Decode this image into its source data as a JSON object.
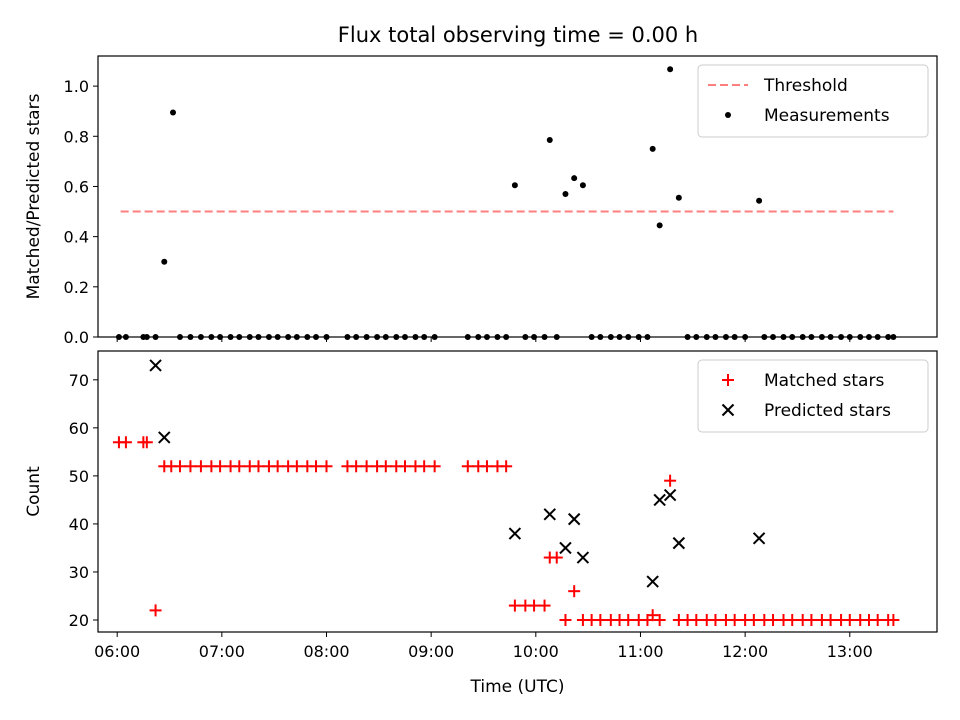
{
  "figure": {
    "title": "Flux total observing time = 0.00 h"
  },
  "chart_data": [
    {
      "type": "scatter",
      "xlabel": "",
      "ylabel": "Matched/Predicted stars",
      "x_ticks": [
        "06:00",
        "07:00",
        "08:00",
        "09:00",
        "10:00",
        "11:00",
        "12:00",
        "13:00"
      ],
      "xlim": [
        "05:49",
        "13:50"
      ],
      "ylim": [
        0,
        1.12
      ],
      "y_ticks": [
        "0.0",
        "0.2",
        "0.4",
        "0.6",
        "0.8",
        "1.0"
      ],
      "legend_position": "top-right",
      "grid": false,
      "threshold": {
        "name": "Threshold",
        "value": 0.5,
        "x_range": [
          "06:02",
          "13:25"
        ],
        "color": "#ff7f7f"
      },
      "series": [
        {
          "name": "Measurements",
          "color": "#000000",
          "marker": "dot",
          "points": [
            [
              "06:01",
              0
            ],
            [
              "06:05",
              0
            ],
            [
              "06:15",
              0
            ],
            [
              "06:17",
              0
            ],
            [
              "06:22",
              0
            ],
            [
              "06:27",
              0.3
            ],
            [
              "06:32",
              0.895
            ],
            [
              "06:36",
              0
            ],
            [
              "06:42",
              0
            ],
            [
              "06:48",
              0
            ],
            [
              "06:54",
              0
            ],
            [
              "06:59",
              0
            ],
            [
              "07:05",
              0
            ],
            [
              "07:10",
              0
            ],
            [
              "07:16",
              0
            ],
            [
              "07:21",
              0
            ],
            [
              "07:27",
              0
            ],
            [
              "07:32",
              0
            ],
            [
              "07:38",
              0
            ],
            [
              "07:43",
              0
            ],
            [
              "07:49",
              0
            ],
            [
              "07:54",
              0
            ],
            [
              "08:00",
              0
            ],
            [
              "08:12",
              0
            ],
            [
              "08:17",
              0
            ],
            [
              "08:23",
              0
            ],
            [
              "08:29",
              0
            ],
            [
              "08:34",
              0
            ],
            [
              "08:40",
              0
            ],
            [
              "08:45",
              0
            ],
            [
              "08:51",
              0
            ],
            [
              "08:56",
              0
            ],
            [
              "09:02",
              0
            ],
            [
              "09:21",
              0
            ],
            [
              "09:27",
              0
            ],
            [
              "09:32",
              0
            ],
            [
              "09:38",
              0
            ],
            [
              "09:43",
              0
            ],
            [
              "09:48",
              0.605
            ],
            [
              "09:54",
              0
            ],
            [
              "09:59",
              0
            ],
            [
              "10:05",
              0
            ],
            [
              "10:08",
              0.785
            ],
            [
              "10:12",
              0
            ],
            [
              "10:17",
              0.57
            ],
            [
              "10:22",
              0.633
            ],
            [
              "10:27",
              0.605
            ],
            [
              "10:32",
              0
            ],
            [
              "10:37",
              0
            ],
            [
              "10:43",
              0
            ],
            [
              "10:48",
              0
            ],
            [
              "10:53",
              0
            ],
            [
              "10:59",
              0
            ],
            [
              "11:04",
              0
            ],
            [
              "11:07",
              0.75
            ],
            [
              "11:11",
              0.445
            ],
            [
              "11:17",
              1.067
            ],
            [
              "11:22",
              0.555
            ],
            [
              "11:27",
              0
            ],
            [
              "11:32",
              0
            ],
            [
              "11:38",
              0
            ],
            [
              "11:43",
              0
            ],
            [
              "11:49",
              0
            ],
            [
              "11:54",
              0
            ],
            [
              "12:00",
              0
            ],
            [
              "12:08",
              0.543
            ],
            [
              "12:11",
              0
            ],
            [
              "12:16",
              0
            ],
            [
              "12:22",
              0
            ],
            [
              "12:27",
              0
            ],
            [
              "12:33",
              0
            ],
            [
              "12:38",
              0
            ],
            [
              "12:44",
              0
            ],
            [
              "12:49",
              0
            ],
            [
              "12:55",
              0
            ],
            [
              "13:00",
              0
            ],
            [
              "13:06",
              0
            ],
            [
              "13:11",
              0
            ],
            [
              "13:16",
              0
            ],
            [
              "13:22",
              0
            ],
            [
              "13:25",
              0
            ]
          ]
        }
      ]
    },
    {
      "type": "scatter",
      "xlabel": "Time (UTC)",
      "ylabel": "Count",
      "x_ticks": [
        "06:00",
        "07:00",
        "08:00",
        "09:00",
        "10:00",
        "11:00",
        "12:00",
        "13:00"
      ],
      "xlim": [
        "05:49",
        "13:50"
      ],
      "ylim": [
        17.5,
        76
      ],
      "y_ticks": [
        "20",
        "30",
        "40",
        "50",
        "60",
        "70"
      ],
      "legend_position": "top-right",
      "grid": false,
      "series": [
        {
          "name": "Matched stars",
          "color": "#ff0000",
          "marker": "plus",
          "points": [
            [
              "06:01",
              57
            ],
            [
              "06:05",
              57
            ],
            [
              "06:15",
              57
            ],
            [
              "06:17",
              57
            ],
            [
              "06:22",
              22
            ],
            [
              "06:27",
              52
            ],
            [
              "06:31",
              52
            ],
            [
              "06:36",
              52
            ],
            [
              "06:42",
              52
            ],
            [
              "06:48",
              52
            ],
            [
              "06:54",
              52
            ],
            [
              "06:59",
              52
            ],
            [
              "07:05",
              52
            ],
            [
              "07:10",
              52
            ],
            [
              "07:16",
              52
            ],
            [
              "07:21",
              52
            ],
            [
              "07:27",
              52
            ],
            [
              "07:32",
              52
            ],
            [
              "07:38",
              52
            ],
            [
              "07:43",
              52
            ],
            [
              "07:49",
              52
            ],
            [
              "07:54",
              52
            ],
            [
              "08:00",
              52
            ],
            [
              "08:12",
              52
            ],
            [
              "08:17",
              52
            ],
            [
              "08:23",
              52
            ],
            [
              "08:29",
              52
            ],
            [
              "08:34",
              52
            ],
            [
              "08:40",
              52
            ],
            [
              "08:45",
              52
            ],
            [
              "08:51",
              52
            ],
            [
              "08:56",
              52
            ],
            [
              "09:02",
              52
            ],
            [
              "09:21",
              52
            ],
            [
              "09:27",
              52
            ],
            [
              "09:32",
              52
            ],
            [
              "09:38",
              52
            ],
            [
              "09:43",
              52
            ],
            [
              "09:48",
              23
            ],
            [
              "09:54",
              23
            ],
            [
              "09:59",
              23
            ],
            [
              "10:05",
              23
            ],
            [
              "10:08",
              33
            ],
            [
              "10:12",
              33
            ],
            [
              "10:17",
              20
            ],
            [
              "10:22",
              26
            ],
            [
              "10:27",
              20
            ],
            [
              "10:32",
              20
            ],
            [
              "10:37",
              20
            ],
            [
              "10:43",
              20
            ],
            [
              "10:48",
              20
            ],
            [
              "10:53",
              20
            ],
            [
              "10:59",
              20
            ],
            [
              "11:04",
              20
            ],
            [
              "11:07",
              21
            ],
            [
              "11:11",
              20
            ],
            [
              "11:17",
              49
            ],
            [
              "11:22",
              20
            ],
            [
              "11:27",
              20
            ],
            [
              "11:32",
              20
            ],
            [
              "11:38",
              20
            ],
            [
              "11:43",
              20
            ],
            [
              "11:49",
              20
            ],
            [
              "11:54",
              20
            ],
            [
              "12:00",
              20
            ],
            [
              "12:05",
              20
            ],
            [
              "12:11",
              20
            ],
            [
              "12:16",
              20
            ],
            [
              "12:22",
              20
            ],
            [
              "12:27",
              20
            ],
            [
              "12:33",
              20
            ],
            [
              "12:38",
              20
            ],
            [
              "12:44",
              20
            ],
            [
              "12:49",
              20
            ],
            [
              "12:55",
              20
            ],
            [
              "13:00",
              20
            ],
            [
              "13:06",
              20
            ],
            [
              "13:11",
              20
            ],
            [
              "13:16",
              20
            ],
            [
              "13:22",
              20
            ],
            [
              "13:25",
              20
            ]
          ]
        },
        {
          "name": "Predicted stars",
          "color": "#000000",
          "marker": "x",
          "points": [
            [
              "06:22",
              73
            ],
            [
              "06:27",
              58
            ],
            [
              "09:48",
              38
            ],
            [
              "10:08",
              42
            ],
            [
              "10:17",
              35
            ],
            [
              "10:22",
              41
            ],
            [
              "10:27",
              33
            ],
            [
              "11:07",
              28
            ],
            [
              "11:11",
              45
            ],
            [
              "11:17",
              46
            ],
            [
              "11:22",
              36
            ],
            [
              "12:08",
              37
            ]
          ]
        }
      ]
    }
  ]
}
